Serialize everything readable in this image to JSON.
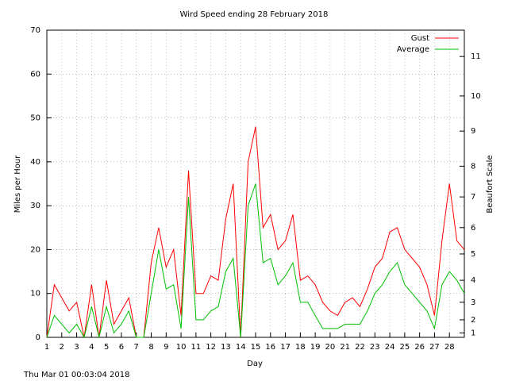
{
  "chart_data": {
    "type": "line",
    "title": "Wird Speed ending 28 February 2018",
    "xlabel": "Day",
    "ylabel": "Miles per Hour",
    "y2label": "Beaufort Scale",
    "footer": "Thu Mar 01 00:03:04 2018",
    "x": [
      1,
      1.5,
      2,
      2.5,
      3,
      3.5,
      4,
      4.5,
      5,
      5.5,
      6,
      6.5,
      7,
      7.5,
      8,
      8.5,
      9,
      9.5,
      10,
      10.5,
      11,
      11.5,
      12,
      12.5,
      13,
      13.5,
      14,
      14.5,
      15,
      15.5,
      16,
      16.5,
      17,
      17.5,
      18,
      18.5,
      19,
      19.5,
      20,
      20.5,
      21,
      21.5,
      22,
      22.5,
      23,
      23.5,
      24,
      24.5,
      25,
      25.5,
      26,
      26.5,
      27,
      27.5,
      28,
      28.5,
      29
    ],
    "series": [
      {
        "name": "Gust",
        "color": "#ff0000",
        "values": [
          0,
          12,
          9,
          6,
          8,
          0,
          12,
          0,
          13,
          3,
          6,
          9,
          0,
          0,
          17,
          25,
          16,
          20,
          5,
          38,
          10,
          10,
          14,
          13,
          27,
          35,
          0,
          40,
          48,
          25,
          28,
          20,
          22,
          28,
          13,
          14,
          12,
          8,
          6,
          5,
          8,
          9,
          7,
          11,
          16,
          18,
          24,
          25,
          20,
          18,
          16,
          12,
          5,
          22,
          35,
          22,
          20
        ]
      },
      {
        "name": "Average",
        "color": "#00c000",
        "values": [
          0,
          5,
          3,
          1,
          3,
          0,
          7,
          0,
          7,
          1,
          3,
          6,
          0,
          0,
          10,
          20,
          11,
          12,
          2,
          32,
          4,
          4,
          6,
          7,
          15,
          18,
          0,
          30,
          35,
          17,
          18,
          12,
          14,
          17,
          8,
          8,
          5,
          2,
          2,
          2,
          3,
          3,
          3,
          6,
          10,
          12,
          15,
          17,
          12,
          10,
          8,
          6,
          2,
          12,
          15,
          13,
          10
        ]
      }
    ],
    "xlim": [
      1,
      29
    ],
    "xticks": [
      1,
      2,
      3,
      4,
      5,
      6,
      7,
      8,
      9,
      10,
      11,
      12,
      13,
      14,
      15,
      16,
      17,
      18,
      19,
      20,
      21,
      22,
      23,
      24,
      25,
      26,
      27,
      28
    ],
    "ylim": [
      0,
      70
    ],
    "yticks": [
      0,
      10,
      20,
      30,
      40,
      50,
      60,
      70
    ],
    "y2lim": [
      0,
      70
    ],
    "y2ticks": [
      1,
      {
        "value": 4,
        "label": "2"
      },
      {
        "value": 8,
        "label": "3"
      },
      {
        "value": 13,
        "label": "4"
      },
      {
        "value": 19,
        "label": "5"
      },
      {
        "value": 25,
        "label": "6"
      },
      {
        "value": 32,
        "label": "7"
      },
      {
        "value": 39,
        "label": "8"
      },
      {
        "value": 47,
        "label": "9"
      },
      {
        "value": 55,
        "label": "10"
      },
      {
        "value": 64,
        "label": "11"
      }
    ],
    "grid": true,
    "legend": "top-right"
  }
}
